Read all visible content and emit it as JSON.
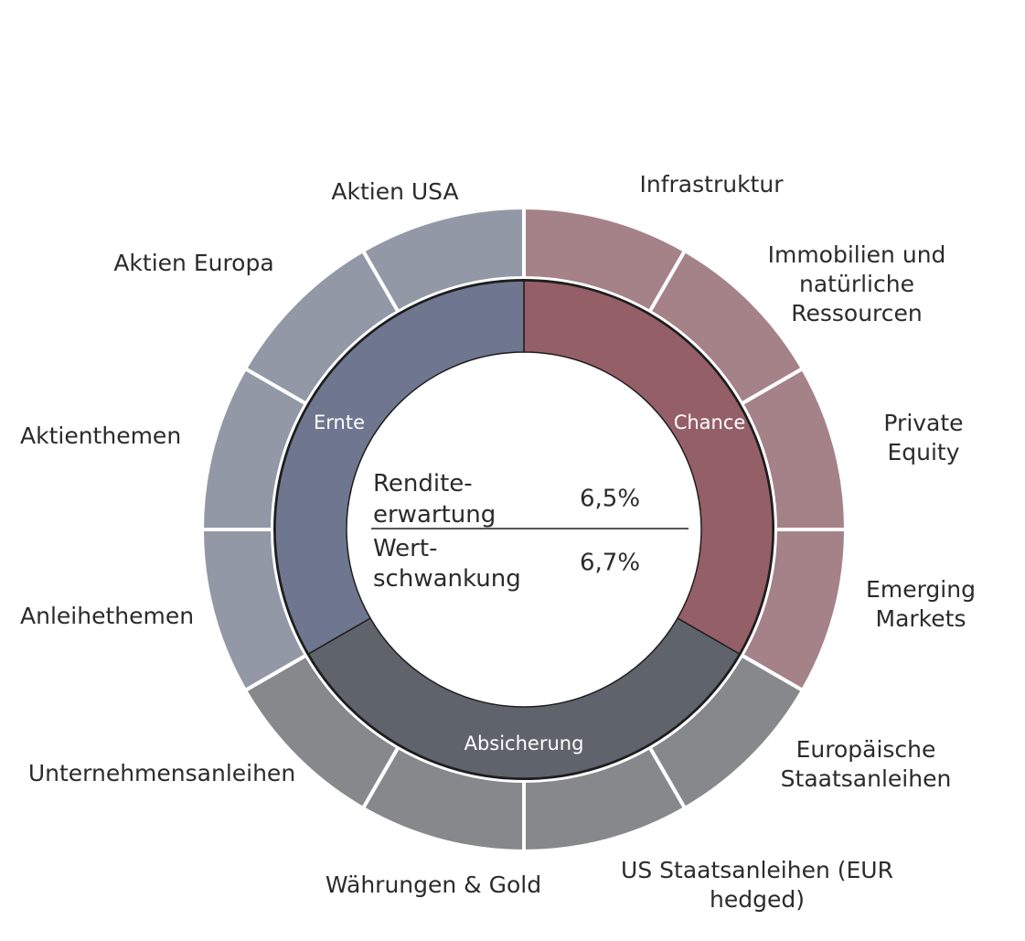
{
  "chart_data": {
    "type": "pie",
    "subtype": "nested-donut",
    "inner_ring": {
      "categories": [
        "Chance",
        "Absicherung",
        "Ernte"
      ],
      "values": [
        4,
        4,
        4
      ],
      "colors": [
        "#955f68",
        "#5f636b",
        "#6e778f"
      ]
    },
    "outer_ring": {
      "categories": [
        "Infrastruktur",
        [
          "Immobilien und",
          "natürliche",
          "Ressourcen"
        ],
        [
          "Private",
          "Equity"
        ],
        [
          "Emerging",
          "Markets"
        ],
        [
          "Europäische",
          "Staatsanleihen"
        ],
        [
          "US Staatsanleihen (EUR",
          "hedged)"
        ],
        "Währungen & Gold",
        "Unternehmensanleihen",
        "Anleihethemen",
        "Aktienthemen",
        "Aktien Europa",
        "Aktien USA"
      ],
      "values": [
        1,
        1,
        1,
        1,
        1,
        1,
        1,
        1,
        1,
        1,
        1,
        1
      ],
      "groups": [
        "Chance",
        "Chance",
        "Chance",
        "Chance",
        "Absicherung",
        "Absicherung",
        "Absicherung",
        "Absicherung",
        "Ernte",
        "Ernte",
        "Ernte",
        "Ernte"
      ],
      "colors": [
        "#a58287",
        "#a58287",
        "#a58287",
        "#a58287",
        "#87888c",
        "#87888c",
        "#87888c",
        "#87888c",
        "#9298a6",
        "#9298a6",
        "#9298a6",
        "#9298a6"
      ]
    },
    "center": {
      "rows": [
        {
          "label": [
            "Rendite-",
            "erwartung"
          ],
          "value": "6,5%"
        },
        {
          "label": [
            "Wert-",
            "schwankung"
          ],
          "value": "6,7%"
        }
      ]
    }
  }
}
